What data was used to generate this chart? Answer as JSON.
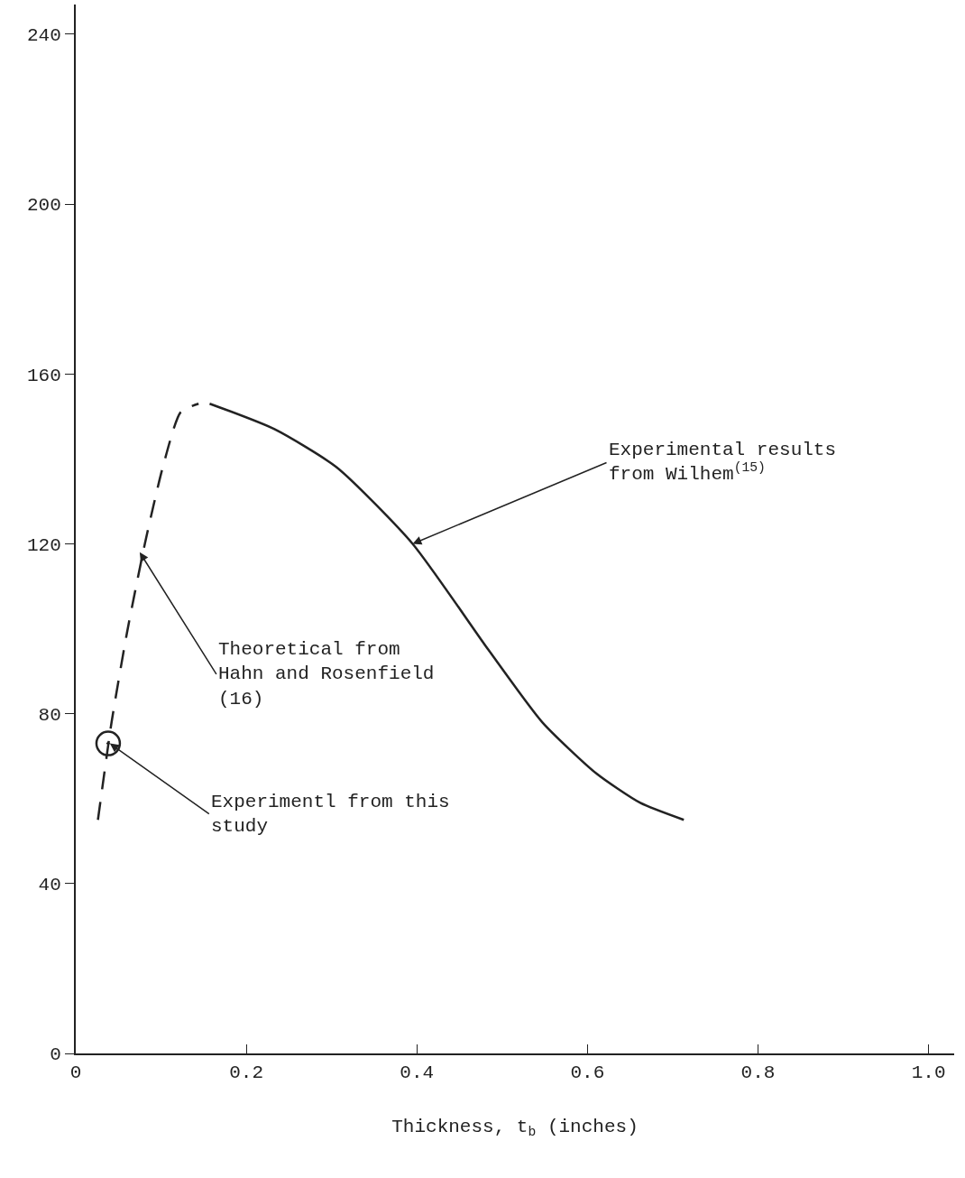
{
  "chart_data": {
    "type": "line",
    "xlabel": "Thickness, t$_{b}$ (inches)",
    "xlim": [
      0,
      1.03
    ],
    "ylim": [
      0,
      247
    ],
    "xticks": [
      {
        "value": 0,
        "label": "0"
      },
      0.2,
      0.4,
      0.6,
      0.8,
      {
        "value": 1,
        "label": "1.0"
      }
    ],
    "yticks": [
      0,
      40,
      80,
      120,
      160,
      200,
      240
    ],
    "grid": false,
    "series": [
      {
        "line_style": "dashed",
        "color": "#222222",
        "x": [
          0.026,
          0.042,
          0.06,
          0.081,
          0.102,
          0.123,
          0.144
        ],
        "values": [
          55,
          78,
          99,
          120,
          138,
          151,
          153
        ]
      },
      {
        "line_style": "solid",
        "color": "#222222",
        "x": [
          0.157,
          0.233,
          0.306,
          0.395,
          0.484,
          0.547,
          0.61,
          0.662,
          0.713
        ],
        "values": [
          153,
          147,
          138,
          120,
          95,
          78,
          66,
          59,
          55
        ]
      },
      {
        "type": "scatter",
        "marker": "circle",
        "color": "#222222",
        "x": [
          0.038
        ],
        "values": [
          73
        ]
      }
    ],
    "annotations": [
      {
        "text": "Experimental results\nfrom Wilhem$^{(15)}$",
        "x": 0.395,
        "y": 120
      },
      {
        "text": "Theoretical from\nHahn and Rosenfield\n(16)",
        "x": 0.075,
        "y": 118
      },
      {
        "text": "Experimentl from this\nstudy",
        "x": 0.04,
        "y": 73
      }
    ]
  }
}
